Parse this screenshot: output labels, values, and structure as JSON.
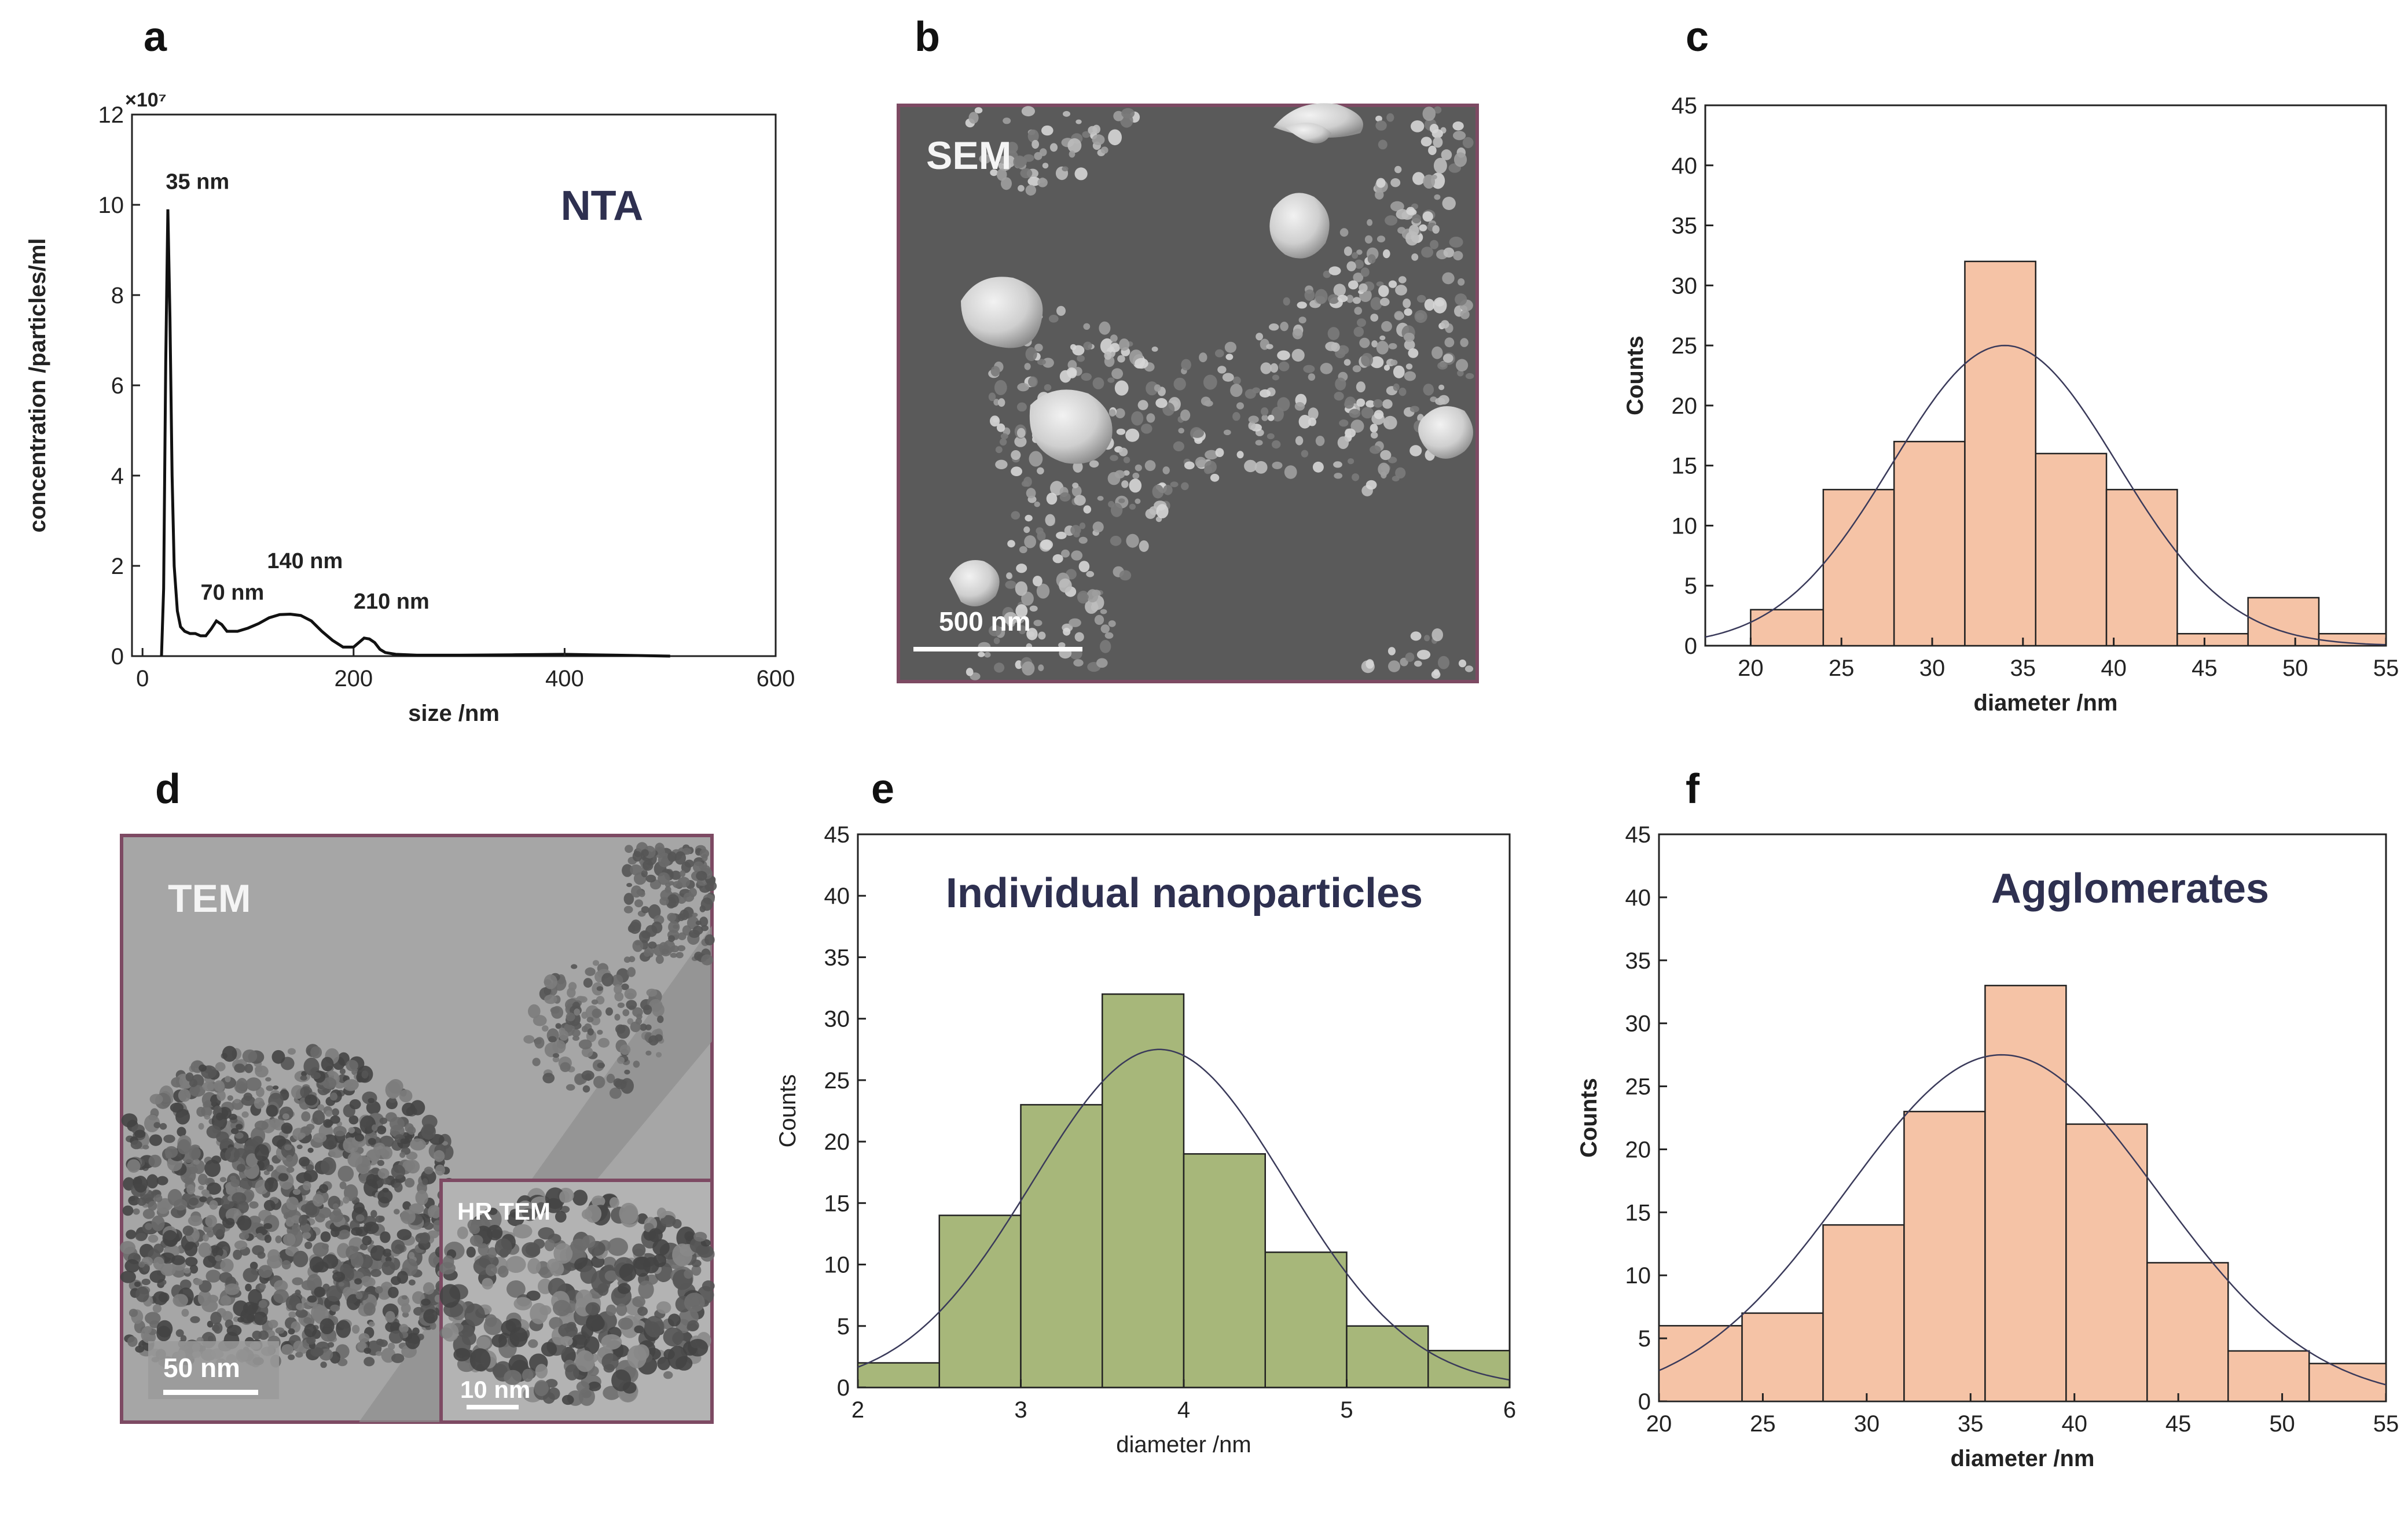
{
  "panels": {
    "a": "a",
    "b": "b",
    "c": "c",
    "d": "d",
    "e": "e",
    "f": "f"
  },
  "colors": {
    "peach": "#f5c3a6",
    "olive": "#a7b77a",
    "frame": "#7d4a63",
    "label_dark": "#2e3050"
  },
  "images": {
    "sem": {
      "label": "SEM",
      "scale_bar": "500 nm"
    },
    "tem": {
      "label": "TEM",
      "scale_bar": "50 nm",
      "inset_label": "HR TEM",
      "inset_scale_bar": "10 nm"
    }
  },
  "chart_data": [
    {
      "id": "a",
      "type": "line",
      "title": "NTA",
      "xlabel": "size /nm",
      "ylabel": "concentration /particles/ml",
      "y_multiplier_label": "×10⁷",
      "xlim": [
        -10,
        600
      ],
      "ylim": [
        0,
        12
      ],
      "xticks": [
        0,
        200,
        400,
        600
      ],
      "yticks": [
        0,
        2,
        4,
        6,
        8,
        10,
        12
      ],
      "x": [
        18,
        20,
        22,
        24,
        26,
        28,
        30,
        33,
        36,
        40,
        45,
        50,
        55,
        60,
        65,
        70,
        75,
        80,
        90,
        100,
        110,
        120,
        130,
        140,
        150,
        160,
        170,
        180,
        190,
        200,
        205,
        210,
        215,
        220,
        225,
        230,
        240,
        260,
        300,
        350,
        400,
        450,
        500
      ],
      "y": [
        0,
        1.5,
        6.5,
        9.9,
        7.5,
        4.0,
        2.0,
        1.0,
        0.65,
        0.55,
        0.5,
        0.5,
        0.45,
        0.45,
        0.6,
        0.78,
        0.7,
        0.55,
        0.55,
        0.62,
        0.72,
        0.85,
        0.92,
        0.93,
        0.9,
        0.78,
        0.55,
        0.35,
        0.2,
        0.2,
        0.3,
        0.4,
        0.38,
        0.3,
        0.15,
        0.08,
        0.04,
        0.02,
        0.02,
        0.03,
        0.04,
        0.02,
        0.0
      ],
      "annotations": [
        {
          "text": "35 nm",
          "x": 22,
          "y": 10.35
        },
        {
          "text": "70 nm",
          "x": 55,
          "y": 1.25
        },
        {
          "text": "140 nm",
          "x": 118,
          "y": 1.95
        },
        {
          "text": "210 nm",
          "x": 200,
          "y": 1.05
        }
      ]
    },
    {
      "id": "c",
      "type": "bar",
      "xlabel": "diameter /nm",
      "ylabel": "Counts",
      "xlim": [
        17.5,
        55
      ],
      "ylim": [
        0,
        45
      ],
      "xticks": [
        20,
        25,
        30,
        35,
        40,
        45,
        50,
        55
      ],
      "yticks": [
        0,
        5,
        10,
        15,
        20,
        25,
        30,
        35,
        40,
        45
      ],
      "bins": [
        [
          20,
          24
        ],
        [
          24,
          27.9
        ],
        [
          27.9,
          31.8
        ],
        [
          31.8,
          35.7
        ],
        [
          35.7,
          39.6
        ],
        [
          39.6,
          43.5
        ],
        [
          43.5,
          47.4
        ],
        [
          47.4,
          51.3
        ],
        [
          51.3,
          55
        ]
      ],
      "values": [
        3,
        13,
        17,
        32,
        16,
        13,
        1,
        4,
        1
      ],
      "fit": {
        "mean": 34,
        "sd": 6.2,
        "peak": 25
      }
    },
    {
      "id": "e",
      "type": "bar",
      "title": "Individual nanoparticles",
      "xlabel": "diameter /nm",
      "ylabel": "Counts",
      "xlim": [
        2,
        6
      ],
      "ylim": [
        0,
        45
      ],
      "xticks": [
        2,
        3,
        4,
        5,
        6
      ],
      "yticks": [
        0,
        5,
        10,
        15,
        20,
        25,
        30,
        35,
        40,
        45
      ],
      "bins": [
        [
          2,
          2.5
        ],
        [
          2.5,
          3
        ],
        [
          3,
          3.5
        ],
        [
          3.5,
          4
        ],
        [
          4,
          4.5
        ],
        [
          4.5,
          5
        ],
        [
          5,
          5.5
        ],
        [
          5.5,
          6
        ]
      ],
      "values": [
        2,
        14,
        23,
        32,
        19,
        11,
        5,
        3
      ],
      "fit": {
        "mean": 3.85,
        "sd": 0.78,
        "peak": 27.5
      }
    },
    {
      "id": "f",
      "type": "bar",
      "title": "Agglomerates",
      "xlabel": "diameter /nm",
      "ylabel": "Counts",
      "xlim": [
        20,
        55
      ],
      "ylim": [
        0,
        45
      ],
      "xticks": [
        20,
        25,
        30,
        35,
        40,
        45,
        50,
        55
      ],
      "yticks": [
        0,
        5,
        10,
        15,
        20,
        25,
        30,
        35,
        40,
        45
      ],
      "bins": [
        [
          20,
          24
        ],
        [
          24,
          27.9
        ],
        [
          27.9,
          31.8
        ],
        [
          31.8,
          35.7
        ],
        [
          35.7,
          39.6
        ],
        [
          39.6,
          43.5
        ],
        [
          43.5,
          47.4
        ],
        [
          47.4,
          51.3
        ],
        [
          51.3,
          55
        ]
      ],
      "values": [
        6,
        7,
        14,
        23,
        33,
        22,
        11,
        4,
        3
      ],
      "fit": {
        "mean": 36.5,
        "sd": 7.5,
        "peak": 27.5
      }
    }
  ]
}
